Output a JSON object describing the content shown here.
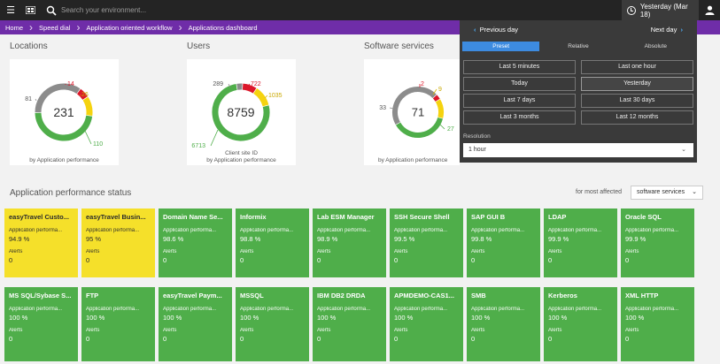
{
  "topbar": {
    "search_placeholder": "Search your environment...",
    "timeframe_label": "Yesterday (Mar 18)"
  },
  "breadcrumbs": [
    "Home",
    "Speed dial",
    "Application oriented workflow",
    "Applications dashboard"
  ],
  "sections": {
    "locations": "Locations",
    "users": "Users",
    "software": "Software services",
    "perf_status": "Application performance status"
  },
  "tiles": {
    "locations": {
      "center": "231",
      "segments": [
        {
          "label": "81",
          "value": 81,
          "color": "#8c8c8c"
        },
        {
          "label": "14",
          "value": 14,
          "color": "#dc172a"
        },
        {
          "label": "26",
          "value": 26,
          "color": "#f5d30f"
        },
        {
          "label": "110",
          "value": 110,
          "color": "#4fae4a"
        }
      ],
      "caption": "by Application performance"
    },
    "users": {
      "center": "8759",
      "segments": [
        {
          "label": "289",
          "value": 289,
          "color": "#8c8c8c"
        },
        {
          "label": "722",
          "value": 722,
          "color": "#dc172a"
        },
        {
          "label": "1035",
          "value": 1035,
          "color": "#f5d30f"
        },
        {
          "label": "6713",
          "value": 6713,
          "color": "#4fae4a"
        }
      ],
      "caption_line1": "Client site ID",
      "caption_line2": "by Application performance"
    },
    "software": {
      "center": "71",
      "segments": [
        {
          "label": "33",
          "value": 33,
          "color": "#8c8c8c"
        },
        {
          "label": "2",
          "value": 2,
          "color": "#dc172a"
        },
        {
          "label": "9",
          "value": 9,
          "color": "#f5d30f"
        },
        {
          "label": "27",
          "value": 27,
          "color": "#4fae4a"
        }
      ],
      "caption": "by Application performance"
    }
  },
  "timeframe_panel": {
    "prev": "Previous day",
    "next": "Next day",
    "tabs": [
      "Preset",
      "Relative",
      "Absolute"
    ],
    "options": [
      "Last 5 minutes",
      "Last one hour",
      "Today",
      "Yesterday",
      "Last 7 days",
      "Last 30 days",
      "Last 3 months",
      "Last 12 months"
    ],
    "selected": "Yesterday",
    "resolution_label": "Resolution",
    "resolution_value": "1 hour"
  },
  "filter": {
    "label": "for most affected",
    "value": "software services"
  },
  "status_cards": [
    {
      "name": "easyTravel Custo...",
      "metric_label": "Application performa...",
      "metric": "94.9 %",
      "alerts_label": "Alerts",
      "alerts": "0",
      "color": "yellow"
    },
    {
      "name": "easyTravel Busin...",
      "metric_label": "Application performa...",
      "metric": "95 %",
      "alerts_label": "Alerts",
      "alerts": "0",
      "color": "yellow"
    },
    {
      "name": "Domain Name Se...",
      "metric_label": "Application performa...",
      "metric": "98.6 %",
      "alerts_label": "Alerts",
      "alerts": "0",
      "color": "green"
    },
    {
      "name": "Informix",
      "metric_label": "Application performa...",
      "metric": "98.8 %",
      "alerts_label": "Alerts",
      "alerts": "0",
      "color": "green"
    },
    {
      "name": "Lab ESM Manager",
      "metric_label": "Application performa...",
      "metric": "98.9 %",
      "alerts_label": "Alerts",
      "alerts": "0",
      "color": "green"
    },
    {
      "name": "SSH Secure Shell",
      "metric_label": "Application performa...",
      "metric": "99.5 %",
      "alerts_label": "Alerts",
      "alerts": "0",
      "color": "green"
    },
    {
      "name": "SAP GUI B",
      "metric_label": "Application performa...",
      "metric": "99.8 %",
      "alerts_label": "Alerts",
      "alerts": "0",
      "color": "green"
    },
    {
      "name": "LDAP",
      "metric_label": "Application performa...",
      "metric": "99.9 %",
      "alerts_label": "Alerts",
      "alerts": "0",
      "color": "green"
    },
    {
      "name": "Oracle SQL",
      "metric_label": "Application performa...",
      "metric": "99.9 %",
      "alerts_label": "Alerts",
      "alerts": "0",
      "color": "green"
    },
    {
      "name": "MS SQL/Sybase S...",
      "metric_label": "Application performa...",
      "metric": "100 %",
      "alerts_label": "Alerts",
      "alerts": "0",
      "color": "green"
    },
    {
      "name": "FTP",
      "metric_label": "Application performa...",
      "metric": "100 %",
      "alerts_label": "Alerts",
      "alerts": "0",
      "color": "green"
    },
    {
      "name": "easyTravel Paym...",
      "metric_label": "Application performa...",
      "metric": "100 %",
      "alerts_label": "Alerts",
      "alerts": "0",
      "color": "green"
    },
    {
      "name": "MSSQL",
      "metric_label": "Application performa...",
      "metric": "100 %",
      "alerts_label": "Alerts",
      "alerts": "0",
      "color": "green"
    },
    {
      "name": "IBM DB2 DRDA",
      "metric_label": "Application performa...",
      "metric": "100 %",
      "alerts_label": "Alerts",
      "alerts": "0",
      "color": "green"
    },
    {
      "name": "APMDEMO-CAS1...",
      "metric_label": "Application performa...",
      "metric": "100 %",
      "alerts_label": "Alerts",
      "alerts": "0",
      "color": "green"
    },
    {
      "name": "SMB",
      "metric_label": "Application performa...",
      "metric": "100 %",
      "alerts_label": "Alerts",
      "alerts": "0",
      "color": "green"
    },
    {
      "name": "Kerberos",
      "metric_label": "Application performa...",
      "metric": "100 %",
      "alerts_label": "Alerts",
      "alerts": "0",
      "color": "green"
    },
    {
      "name": "XML HTTP",
      "metric_label": "Application performa...",
      "metric": "100 %",
      "alerts_label": "Alerts",
      "alerts": "0",
      "color": "green"
    }
  ]
}
